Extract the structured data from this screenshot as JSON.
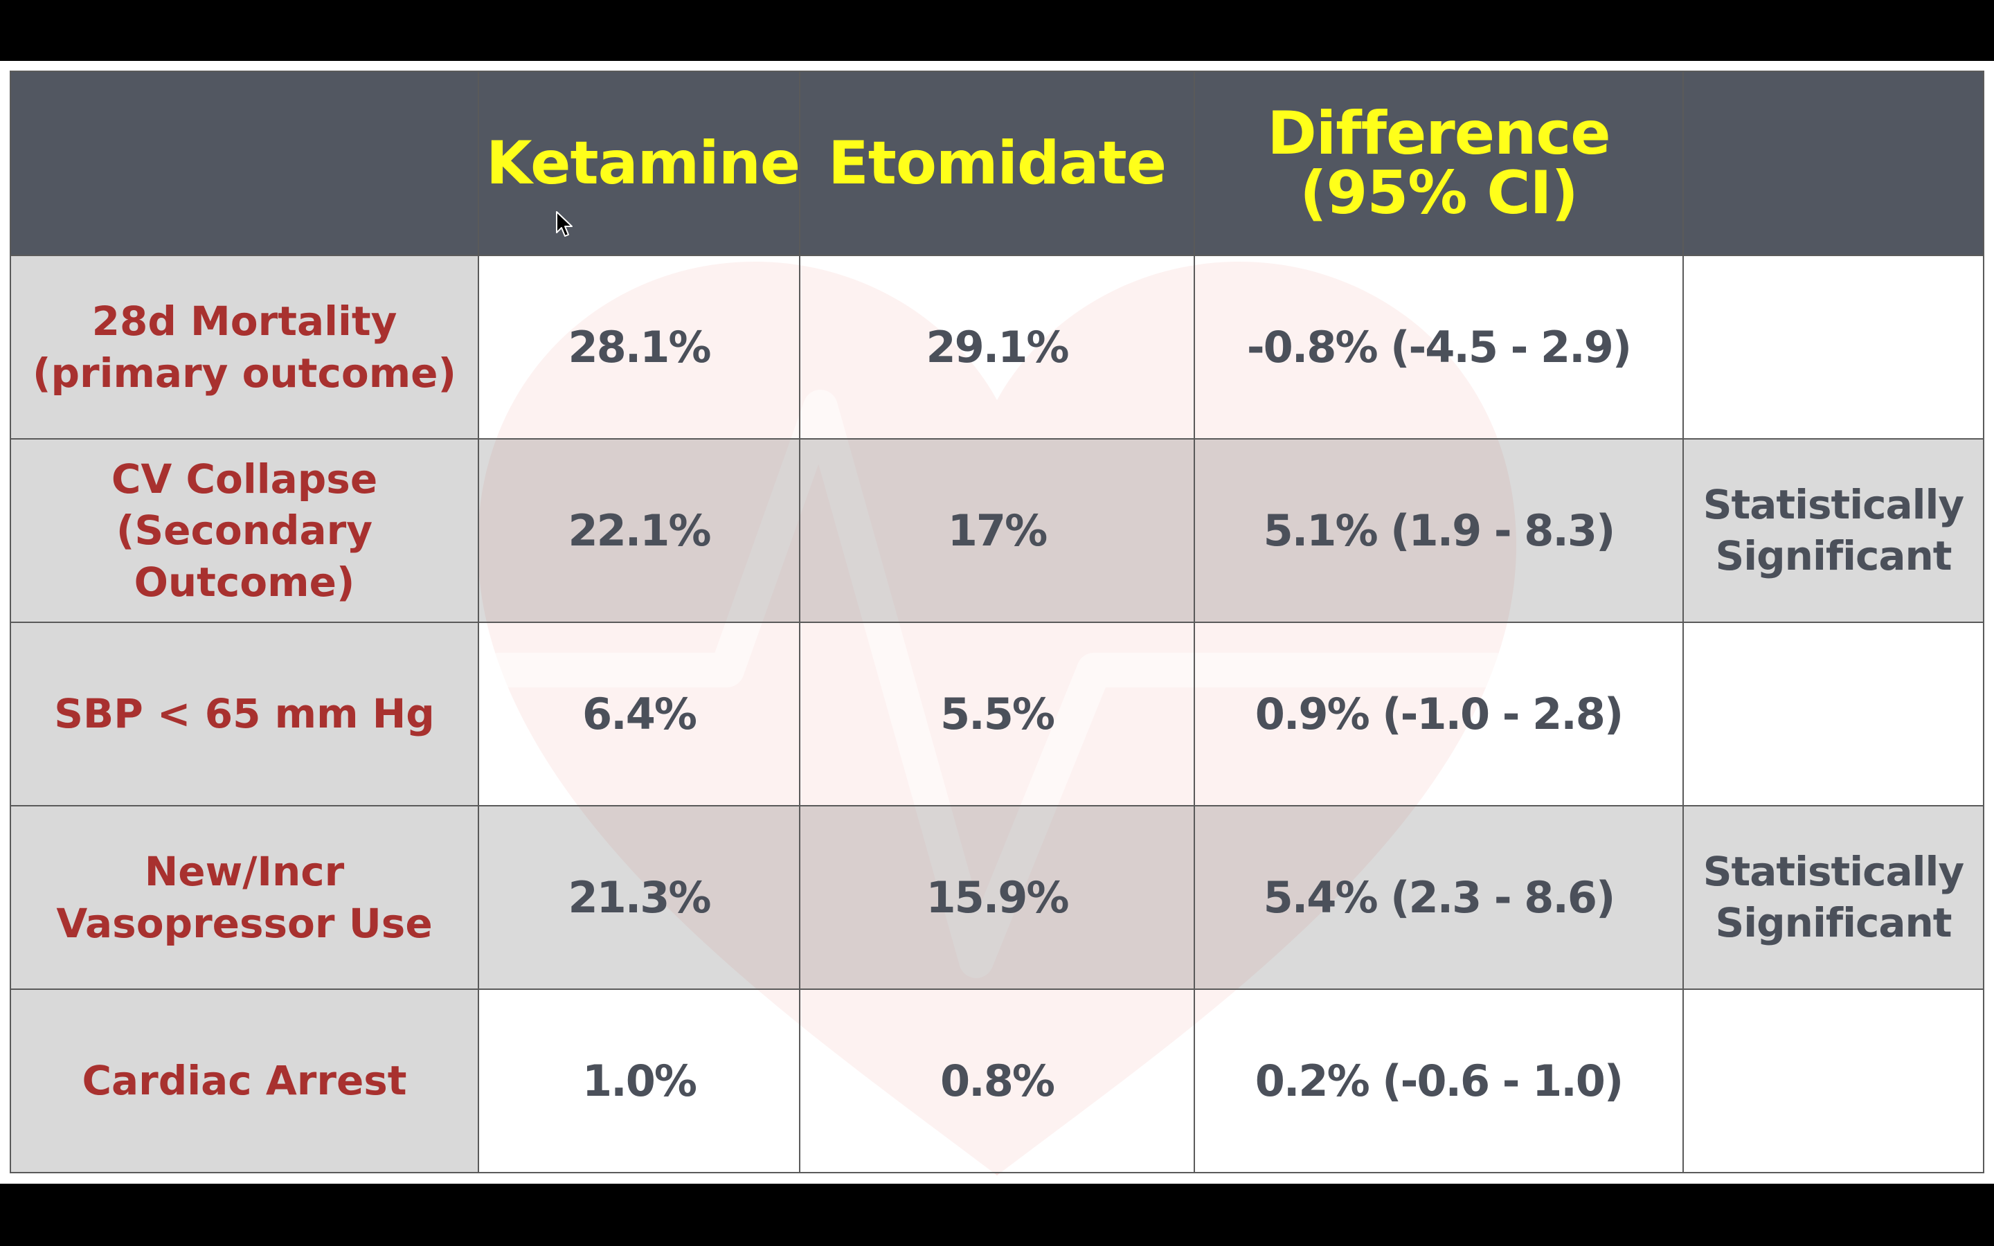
{
  "table": {
    "headers": [
      "",
      "Ketamine",
      "Etomidate",
      "Difference (95% CI)",
      ""
    ],
    "rows": [
      {
        "label_line1": "28d Mortality",
        "label_line2": "(primary outcome)",
        "ketamine": "28.1%",
        "etomidate": "29.1%",
        "difference": "-0.8% (-4.5 - 2.9)",
        "note_line1": "",
        "note_line2": ""
      },
      {
        "label_line1": "CV Collapse",
        "label_line2": "(Secondary Outcome)",
        "ketamine": "22.1%",
        "etomidate": "17%",
        "difference": "5.1% (1.9 - 8.3)",
        "note_line1": "Statistically",
        "note_line2": "Significant"
      },
      {
        "label_line1": "SBP < 65 mm Hg",
        "label_line2": "",
        "ketamine": "6.4%",
        "etomidate": "5.5%",
        "difference": "0.9% (-1.0 - 2.8)",
        "note_line1": "",
        "note_line2": ""
      },
      {
        "label_line1": "New/Incr",
        "label_line2": "Vasopressor Use",
        "ketamine": "21.3%",
        "etomidate": "15.9%",
        "difference": "5.4% (2.3 - 8.6)",
        "note_line1": "Statistically",
        "note_line2": "Significant"
      },
      {
        "label_line1": "Cardiac Arrest",
        "label_line2": "",
        "ketamine": "1.0%",
        "etomidate": "0.8%",
        "difference": "0.2% (-0.6 - 1.0)",
        "note_line1": "",
        "note_line2": ""
      }
    ]
  },
  "header_line": {
    "ketamine": "Ketamine",
    "etomidate": "Etomidate",
    "difference_line1": "Difference",
    "difference_line2": "(95% CI)"
  },
  "colors": {
    "header_bg": "#525761",
    "header_text": "#ffff1a",
    "label_text": "#a8312f",
    "value_text": "#4b505a",
    "label_bg": "#d9d9d9",
    "gray_row_bg": "#d6d6d6",
    "watermark": "#e8483c"
  },
  "icons": {
    "watermark": "heart-ecg-icon",
    "cursor": "mouse-pointer-icon"
  }
}
